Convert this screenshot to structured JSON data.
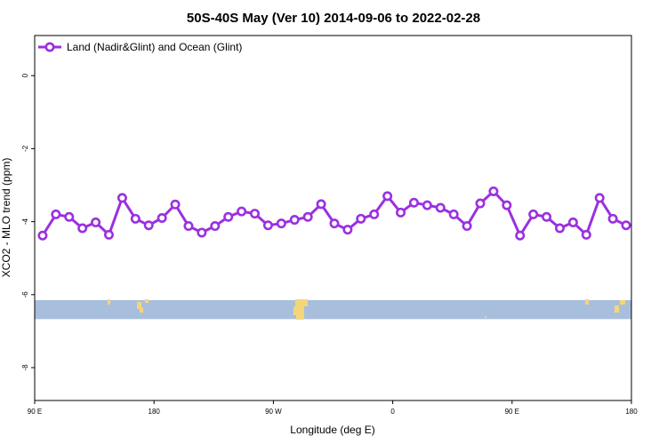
{
  "chart_data": {
    "type": "line",
    "title": "50S-40S May (Ver 10)   2014-09-06 to 2022-02-28",
    "xlabel": "Longitude (deg E)",
    "ylabel": "XCO2 - MLO trend (ppm)",
    "xlim": [
      90,
      540
    ],
    "ylim": [
      -8.9,
      1.1
    ],
    "x_ticks": [
      {
        "value": 90,
        "label": "90 E"
      },
      {
        "value": 180,
        "label": "180"
      },
      {
        "value": 270,
        "label": "90 W"
      },
      {
        "value": 360,
        "label": "0"
      },
      {
        "value": 450,
        "label": "90 E"
      },
      {
        "value": 540,
        "label": "180"
      }
    ],
    "y_ticks": [
      {
        "value": 0,
        "label": "0"
      },
      {
        "value": -2,
        "label": "-2"
      },
      {
        "value": -4,
        "label": "-4"
      },
      {
        "value": -6,
        "label": "-6"
      },
      {
        "value": -8,
        "label": "-8"
      }
    ],
    "legend_position": "top-left",
    "series": [
      {
        "name": "Land (Nadir&Glint) and Ocean (Glint)",
        "color": "#9b30e0",
        "x": [
          96,
          106,
          116,
          126,
          136,
          146,
          156,
          166,
          176,
          186,
          196,
          206,
          216,
          226,
          236,
          246,
          256,
          266,
          276,
          286,
          296,
          306,
          316,
          326,
          336,
          346,
          356,
          366,
          376,
          386,
          396,
          406,
          416,
          426,
          436,
          446,
          456,
          466,
          476,
          486,
          496,
          506,
          516,
          526,
          536
        ],
        "y": [
          -4.38,
          -3.8,
          -3.87,
          -4.18,
          -4.02,
          -4.36,
          -3.35,
          -3.92,
          -4.1,
          -3.9,
          -3.53,
          -4.12,
          -4.3,
          -4.12,
          -3.87,
          -3.72,
          -3.78,
          -4.1,
          -4.05,
          -3.95,
          -3.87,
          -3.52,
          -4.05,
          -4.22,
          -3.92,
          -3.8,
          -3.3,
          -3.75,
          -3.48,
          -3.55,
          -3.62,
          -3.8,
          -4.12,
          -3.5,
          -3.17,
          -3.55,
          -4.38,
          -3.8,
          -3.87,
          -4.18,
          -4.02,
          -4.36,
          -3.35,
          -3.92,
          -4.1
        ]
      }
    ],
    "land_strip": {
      "y_range": [
        -6.15,
        -6.67
      ],
      "ocean_color": "#a8bedd",
      "land_color": "#f4d67a"
    }
  }
}
